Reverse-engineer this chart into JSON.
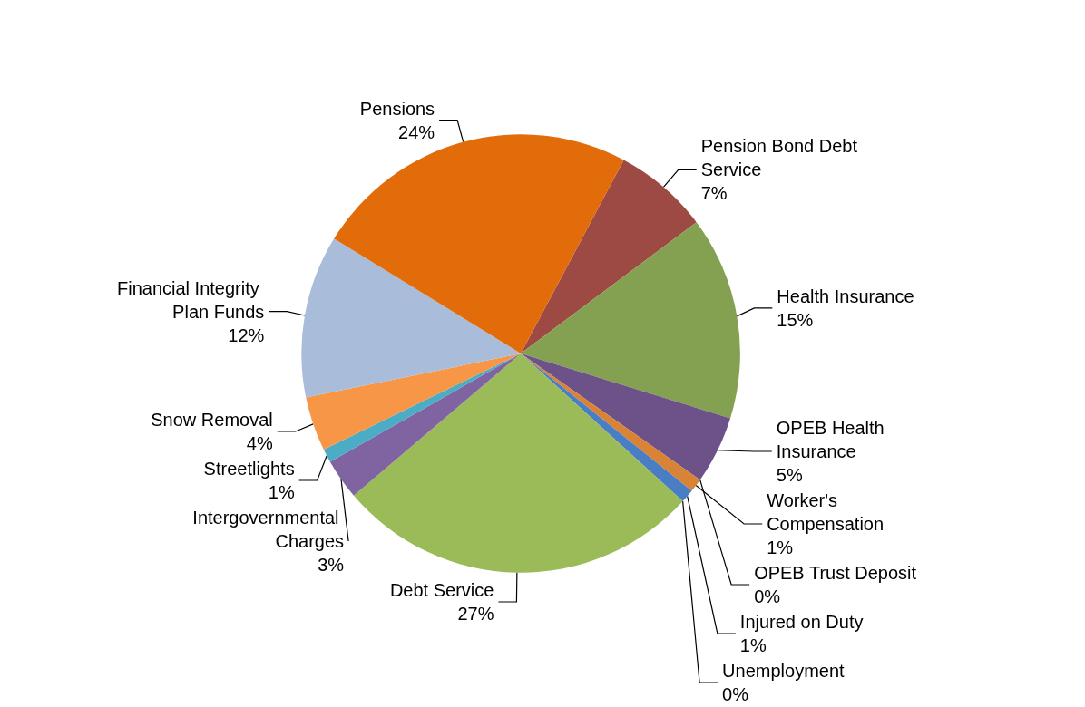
{
  "chart_data": {
    "type": "pie",
    "categories": [
      "Pension Bond Debt Service",
      "Health Insurance",
      "OPEB Health Insurance",
      "OPEB Trust Deposit",
      "Worker's Compensation",
      "Injured on Duty",
      "Unemployment",
      "Debt Service",
      "Intergovernmental Charges",
      "Streetlights",
      "Snow Removal",
      "Financial Integrity Plan Funds",
      "Pensions"
    ],
    "values": [
      7,
      15,
      5,
      0,
      1,
      1,
      0,
      27,
      3,
      1,
      4,
      12,
      24
    ],
    "colors": [
      "#9e4a44",
      "#84a051",
      "#6c5289",
      "#3ba3b8",
      "#d98336",
      "#4a7ec4",
      "#c0504d",
      "#9bbb59",
      "#8064a2",
      "#4bacc6",
      "#f79646",
      "#a9bcd9",
      "#e36c0a"
    ],
    "value_labels": [
      "7%",
      "15%",
      "5%",
      "0%",
      "1%",
      "1%",
      "0%",
      "27%",
      "3%",
      "1%",
      "4%",
      "12%",
      "24%"
    ],
    "legend": false
  }
}
